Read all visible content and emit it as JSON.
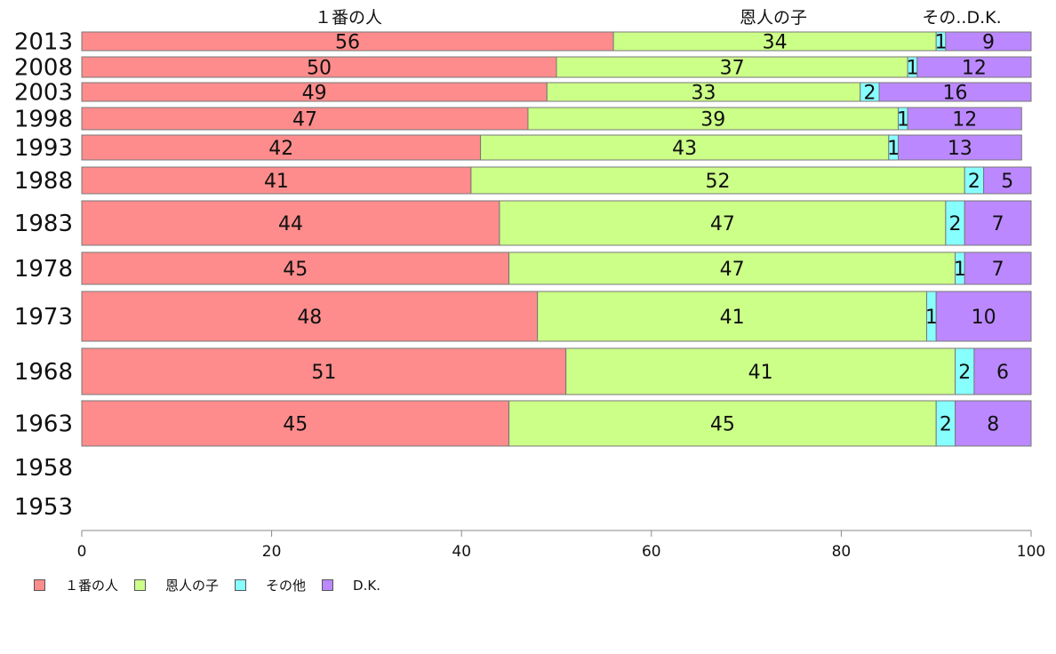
{
  "chart_data": {
    "type": "bar",
    "orientation": "horizontal",
    "stacked": true,
    "categories": [
      "2013",
      "2008",
      "2003",
      "1998",
      "1993",
      "1988",
      "1983",
      "1978",
      "1973",
      "1968",
      "1963",
      "1958",
      "1953"
    ],
    "series": [
      {
        "name": "１番の人",
        "color": "#ff8c8c",
        "values": [
          56,
          50,
          49,
          47,
          42,
          41,
          44,
          45,
          48,
          51,
          45,
          null,
          null
        ]
      },
      {
        "name": "恩人の子",
        "color": "#ccff88",
        "values": [
          34,
          37,
          33,
          39,
          43,
          52,
          47,
          47,
          41,
          41,
          45,
          null,
          null
        ]
      },
      {
        "name": "その他",
        "color": "#88ffff",
        "values": [
          1,
          1,
          2,
          1,
          1,
          2,
          2,
          1,
          1,
          2,
          2,
          null,
          null
        ]
      },
      {
        "name": "D.K.",
        "color": "#bb88ff",
        "values": [
          9,
          12,
          16,
          12,
          13,
          5,
          7,
          7,
          10,
          6,
          8,
          null,
          null
        ]
      }
    ],
    "top_labels": [
      "１番の人",
      "恩人の子",
      "その..D.K."
    ],
    "xlim": [
      0,
      100
    ],
    "xticks": [
      "0",
      "20",
      "40",
      "60",
      "80",
      "100"
    ],
    "legend_position": "bottom-left",
    "grid": false
  }
}
